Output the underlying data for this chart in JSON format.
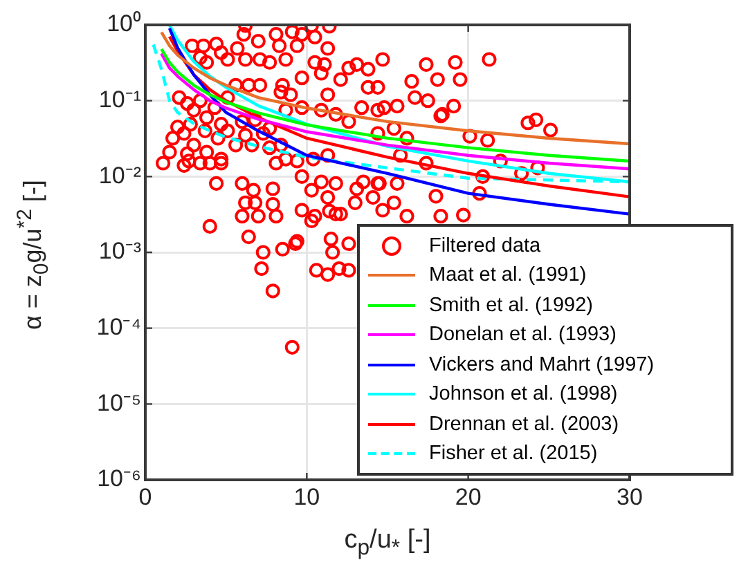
{
  "chart_data": {
    "type": "scatter",
    "xlabel": "c$_{p}$/u$_{*}$ [-]",
    "ylabel": "α = z$_{0}$g/u$^{*2}$ [-]",
    "xlim": [
      0,
      30
    ],
    "xticks": [
      0,
      10,
      20,
      30
    ],
    "ylim": [
      1e-06,
      1
    ],
    "log": true,
    "yticks": [
      {
        "value": 1,
        "label": "10⁰"
      },
      {
        "value": 0.1,
        "label": "10⁻¹"
      },
      {
        "value": 0.01,
        "label": "10⁻²"
      },
      {
        "value": 0.001,
        "label": "10⁻³"
      },
      {
        "value": 0.0001,
        "label": "10⁻⁴"
      },
      {
        "value": 1e-05,
        "label": "10⁻⁵"
      },
      {
        "value": 1e-06,
        "label": "10⁻⁶"
      }
    ],
    "grid": true,
    "legend": "bottom right",
    "series": [
      {
        "name": "Filtered data",
        "marker": "circle",
        "color": "#ff0000",
        "x": [
          6.2,
          10.3,
          11.4,
          6.1,
          8.1,
          9.1,
          9.7,
          10.5,
          7.0,
          8.3,
          9.4,
          2.9,
          3.6,
          4.4,
          4.7,
          5.7,
          11.3,
          3.4,
          3.8,
          5.1,
          6.2,
          7.1,
          7.7,
          8.7,
          10.5,
          11.1,
          12.6,
          13.1,
          13.8,
          14.7,
          9.7,
          10.9,
          12.1,
          14.4,
          6.4,
          5.6,
          7.1,
          8.5,
          8.4,
          9.0,
          11.3,
          8.7,
          9.7,
          10.9,
          11.8,
          13.4,
          14.4,
          12.6,
          7.7,
          6.8,
          6.2,
          6.6,
          7.7,
          7.3,
          2.1,
          2.6,
          3.0,
          3.4,
          3.8,
          4.3,
          4.7,
          5.1,
          2.8,
          3.7,
          4.5,
          2.0,
          2.4,
          1.7,
          1.5,
          3.0,
          3.8,
          4.7,
          5.6,
          5.1,
          6.0,
          1.1,
          3.4,
          2.6,
          4.0,
          4.7,
          2.7,
          2.4,
          8.4,
          8.7,
          8.1,
          9.4,
          10.4,
          11.3,
          9.7,
          10.9,
          11.8,
          13.1,
          13.5,
          14.4,
          13.0,
          14.1,
          14.7,
          4.4,
          6.0,
          6.7,
          7.9,
          10.3,
          11.3,
          6.2,
          6.8,
          7.9,
          9.7,
          11.4,
          12.1,
          6.0,
          7.0,
          8.1,
          10.3,
          4.0,
          6.4,
          9.4,
          11.5,
          7.3,
          8.5,
          9.3,
          7.2,
          7.9,
          9.1,
          10.6,
          11.3,
          12.0,
          12.6,
          11.6,
          12.6,
          10.5,
          11.8,
          21.3,
          23.7,
          24.2,
          25.1,
          23.3,
          24.3,
          22.0,
          21.2,
          20.7,
          20.9,
          19.7,
          19.2,
          19.5,
          17.4,
          18.1,
          16.5,
          19.1,
          18.3,
          18.0,
          18.3,
          20.1,
          17.4,
          13.8,
          14.4,
          15.4,
          14.8,
          16.2,
          16.7,
          17.5,
          18.4,
          15.6,
          15.8,
          14.5,
          15.4,
          15.6,
          16.2
        ],
        "values": [
          0.98,
          0.98,
          0.96,
          0.75,
          0.75,
          0.81,
          0.75,
          0.69,
          0.61,
          0.53,
          0.53,
          0.53,
          0.53,
          0.56,
          0.43,
          0.49,
          0.49,
          0.37,
          0.32,
          0.35,
          0.35,
          0.35,
          0.32,
          0.35,
          0.32,
          0.3,
          0.27,
          0.3,
          0.26,
          0.35,
          0.2,
          0.23,
          0.19,
          0.15,
          0.16,
          0.16,
          0.16,
          0.16,
          0.13,
          0.12,
          0.12,
          0.075,
          0.081,
          0.075,
          0.066,
          0.081,
          0.075,
          0.053,
          0.043,
          0.056,
          0.035,
          0.026,
          0.024,
          0.037,
          0.11,
          0.092,
          0.075,
          0.1,
          0.06,
          0.081,
          0.049,
          0.11,
          0.049,
          0.04,
          0.032,
          0.045,
          0.037,
          0.032,
          0.021,
          0.026,
          0.021,
          0.017,
          0.026,
          0.04,
          0.053,
          0.015,
          0.015,
          0.02,
          0.015,
          0.015,
          0.016,
          0.014,
          0.026,
          0.017,
          0.015,
          0.016,
          0.017,
          0.019,
          0.01,
          0.0085,
          0.0081,
          0.0069,
          0.0085,
          0.0081,
          0.0045,
          0.0053,
          0.0036,
          0.0081,
          0.0081,
          0.0066,
          0.0069,
          0.0066,
          0.0053,
          0.0045,
          0.0045,
          0.0043,
          0.0036,
          0.0035,
          0.0032,
          0.003,
          0.003,
          0.003,
          0.0026,
          0.0022,
          0.0016,
          0.0014,
          0.0015,
          0.001,
          0.0011,
          0.0013,
          0.00061,
          0.00031,
          5.6e-05,
          0.00058,
          0.00051,
          0.00061,
          0.00058,
          0.001,
          0.0013,
          0.003,
          0.0032,
          0.35,
          0.051,
          0.056,
          0.041,
          0.011,
          0.013,
          0.016,
          0.03,
          0.006,
          0.01,
          0.0031,
          0.32,
          0.19,
          0.3,
          0.19,
          0.18,
          0.085,
          0.063,
          0.0055,
          0.003,
          0.034,
          0.015,
          0.15,
          0.037,
          0.043,
          0.081,
          0.032,
          0.11,
          0.1,
          0.066,
          0.085,
          0.019,
          0.0081,
          0.0045,
          0.0081,
          0.003
        ]
      },
      {
        "name": "Maat et al. (1991)",
        "type": "line",
        "color": "#e8702a",
        "x": [
          1,
          1.5,
          2,
          3,
          4,
          5,
          7,
          10,
          15,
          20,
          25,
          30
        ],
        "values": [
          0.8,
          0.53,
          0.4,
          0.27,
          0.2,
          0.16,
          0.11,
          0.08,
          0.053,
          0.04,
          0.032,
          0.027
        ]
      },
      {
        "name": "Smith et al. (1992)",
        "type": "line",
        "color": "#00ff00",
        "x": [
          1,
          1.5,
          2,
          3,
          4,
          5,
          7,
          10,
          15,
          20,
          25,
          30
        ],
        "values": [
          0.48,
          0.32,
          0.24,
          0.16,
          0.12,
          0.096,
          0.069,
          0.048,
          0.032,
          0.024,
          0.019,
          0.016
        ]
      },
      {
        "name": "Donelan et al. (1993)",
        "type": "line",
        "color": "#ff00ff",
        "x": [
          1,
          1.5,
          2,
          3,
          4,
          5,
          7,
          10,
          15,
          20,
          25,
          30
        ],
        "values": [
          0.42,
          0.27,
          0.21,
          0.14,
          0.1,
          0.08,
          0.057,
          0.039,
          0.026,
          0.019,
          0.015,
          0.0126
        ]
      },
      {
        "name": "Vickers and Mahrt (1997)",
        "type": "line",
        "color": "#0000ff",
        "x": [
          1.5,
          2,
          3,
          4,
          5,
          7,
          10,
          15,
          20,
          25,
          30
        ],
        "values": [
          0.9,
          0.5,
          0.22,
          0.12,
          0.07,
          0.04,
          0.019,
          0.011,
          0.006,
          0.0043,
          0.0032
        ]
      },
      {
        "name": "Johnson et al. (1998)",
        "type": "line",
        "color": "#00ffff",
        "x": [
          1.5,
          2,
          3,
          4,
          5,
          7,
          10,
          15,
          20,
          25,
          30
        ],
        "values": [
          0.99,
          0.63,
          0.33,
          0.21,
          0.15,
          0.086,
          0.049,
          0.025,
          0.016,
          0.011,
          0.0085
        ]
      },
      {
        "name": "Drennan et al. (2003)",
        "type": "line",
        "color": "#ff0000",
        "x": [
          1.5,
          2,
          3,
          4,
          5,
          7,
          10,
          15,
          20,
          25,
          30
        ],
        "values": [
          0.7,
          0.45,
          0.22,
          0.14,
          0.1,
          0.06,
          0.032,
          0.018,
          0.011,
          0.0075,
          0.0054
        ]
      },
      {
        "name": "Fisher et al. (2015)",
        "type": "line",
        "line_style": "dashed",
        "color": "#00ffff",
        "x": [
          0.5,
          1,
          1.5,
          2,
          3,
          4,
          5,
          7,
          10,
          15,
          20,
          25,
          30
        ],
        "values": [
          0.55,
          0.26,
          0.1,
          0.07,
          0.05,
          0.04,
          0.033,
          0.025,
          0.018,
          0.013,
          0.0095,
          0.009,
          0.0085
        ]
      }
    ]
  }
}
